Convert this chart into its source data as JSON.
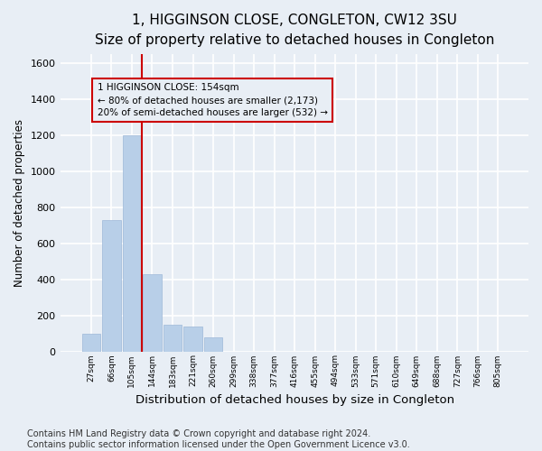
{
  "title1": "1, HIGGINSON CLOSE, CONGLETON, CW12 3SU",
  "title2": "Size of property relative to detached houses in Congleton",
  "xlabel": "Distribution of detached houses by size in Congleton",
  "ylabel": "Number of detached properties",
  "categories": [
    "27sqm",
    "66sqm",
    "105sqm",
    "144sqm",
    "183sqm",
    "221sqm",
    "260sqm",
    "299sqm",
    "338sqm",
    "377sqm",
    "416sqm",
    "455sqm",
    "494sqm",
    "533sqm",
    "571sqm",
    "610sqm",
    "649sqm",
    "688sqm",
    "727sqm",
    "766sqm",
    "805sqm"
  ],
  "values": [
    100,
    730,
    1200,
    430,
    150,
    140,
    80,
    0,
    0,
    0,
    0,
    0,
    0,
    0,
    0,
    0,
    0,
    0,
    0,
    0,
    0
  ],
  "bar_color": "#b8cfe8",
  "bar_edge_color": "#9db8d8",
  "bg_color": "#e8eef5",
  "grid_color": "#ffffff",
  "vline_color": "#cc0000",
  "annotation_line1": "1 HIGGINSON CLOSE: 154sqm",
  "annotation_line2": "← 80% of detached houses are smaller (2,173)",
  "annotation_line3": "20% of semi-detached houses are larger (532) →",
  "annotation_box_color": "#cc0000",
  "ylim": [
    0,
    1650
  ],
  "yticks": [
    0,
    200,
    400,
    600,
    800,
    1000,
    1200,
    1400,
    1600
  ],
  "footer": "Contains HM Land Registry data © Crown copyright and database right 2024.\nContains public sector information licensed under the Open Government Licence v3.0.",
  "title1_fontsize": 11,
  "title2_fontsize": 10,
  "xlabel_fontsize": 9.5,
  "ylabel_fontsize": 8.5,
  "footer_fontsize": 7
}
